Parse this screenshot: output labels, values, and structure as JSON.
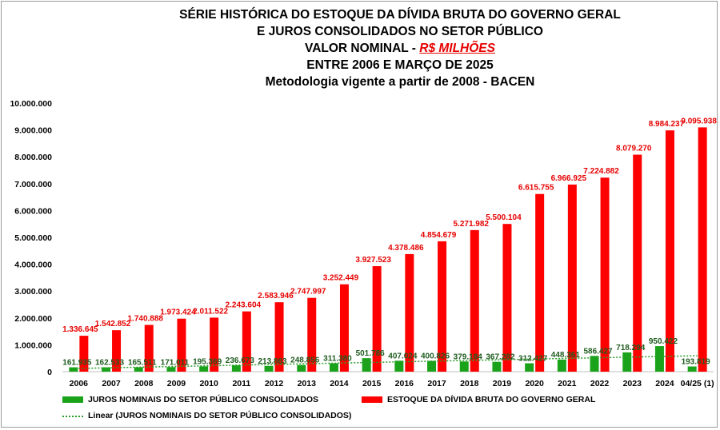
{
  "title": {
    "line1": "SÉRIE HISTÓRICA DO ESTOQUE DA DÍVIDA BRUTA DO GOVERNO GERAL",
    "line2": "E JUROS CONSOLIDADOS NO SETOR PÚBLICO",
    "line3_prefix": "VALOR NOMINAL - ",
    "line3_unit": "R$ MILHÕES",
    "line4": "ENTRE 2006 E MARÇO DE 2025",
    "line5": "Metodologia vigente a partir de 2008 - BACEN"
  },
  "legend": {
    "juros": "JUROS NOMINAIS DO SETOR PÚBLICO CONSOLIDADOS",
    "estoque": "ESTOQUE DA DÍVIDA BRUTA DO GOVERNO GERAL",
    "linear": "Linear (JUROS NOMINAIS DO SETOR PÚBLICO CONSOLIDADOS)"
  },
  "chart_data": {
    "type": "bar",
    "categories": [
      "2006",
      "2007",
      "2008",
      "2009",
      "2010",
      "2011",
      "2012",
      "2013",
      "2014",
      "2015",
      "2016",
      "2017",
      "2018",
      "2019",
      "2020",
      "2021",
      "2022",
      "2023",
      "2024",
      "04/25 (1)"
    ],
    "series": [
      {
        "name": "JUROS NOMINAIS DO SETOR PÚBLICO CONSOLIDADOS",
        "color": "#1aa31a",
        "values": [
          161935,
          162533,
          165511,
          171011,
          195369,
          236673,
          213863,
          248856,
          311380,
          501786,
          407024,
          400826,
          379184,
          367282,
          312427,
          448361,
          586427,
          718294,
          950422,
          193819
        ],
        "labels": [
          "161.935",
          "162.533",
          "165.511",
          "171.011",
          "195.369",
          "236.673",
          "213.863",
          "248.856",
          "311.380",
          "501.786",
          "407.024",
          "400.826",
          "379.184",
          "367.282",
          "312.427",
          "448.361",
          "586.427",
          "718.294",
          "950.422",
          "193.819"
        ]
      },
      {
        "name": "ESTOQUE DA DÍVIDA BRUTA DO GOVERNO GERAL",
        "color": "#ff0000",
        "values": [
          1336645,
          1542852,
          1740888,
          1973424,
          2011522,
          2243604,
          2583946,
          2747997,
          3252449,
          3927523,
          4378486,
          4854679,
          5271982,
          5500104,
          6615755,
          6966925,
          7224882,
          8079270,
          8984237,
          9095938
        ],
        "labels": [
          "1.336.645",
          "1.542.852",
          "1.740.888",
          "1.973.424",
          "2.011.522",
          "2.243.604",
          "2.583.946",
          "2.747.997",
          "3.252.449",
          "3.927.523",
          "4.378.486",
          "4.854.679",
          "5.271.982",
          "5.500.104",
          "6.615.755",
          "6.966.925",
          "7.224.882",
          "8.079.270",
          "8.984.237",
          "9.095.938"
        ]
      }
    ],
    "trendline": {
      "name": "Linear (JUROS NOMINAIS DO SETOR PÚBLICO CONSOLIDADOS)",
      "color": "#2a9d2a",
      "style": "dotted"
    },
    "ylim": [
      0,
      10000000
    ],
    "yticks": [
      0,
      1000000,
      2000000,
      3000000,
      4000000,
      5000000,
      6000000,
      7000000,
      8000000,
      9000000,
      10000000
    ],
    "ytick_labels": [
      "0",
      "1.000.000",
      "2.000.000",
      "3.000.000",
      "4.000.000",
      "5.000.000",
      "6.000.000",
      "7.000.000",
      "8.000.000",
      "9.000.000",
      "10.000.000"
    ],
    "grid": false,
    "legend_position": "bottom"
  }
}
